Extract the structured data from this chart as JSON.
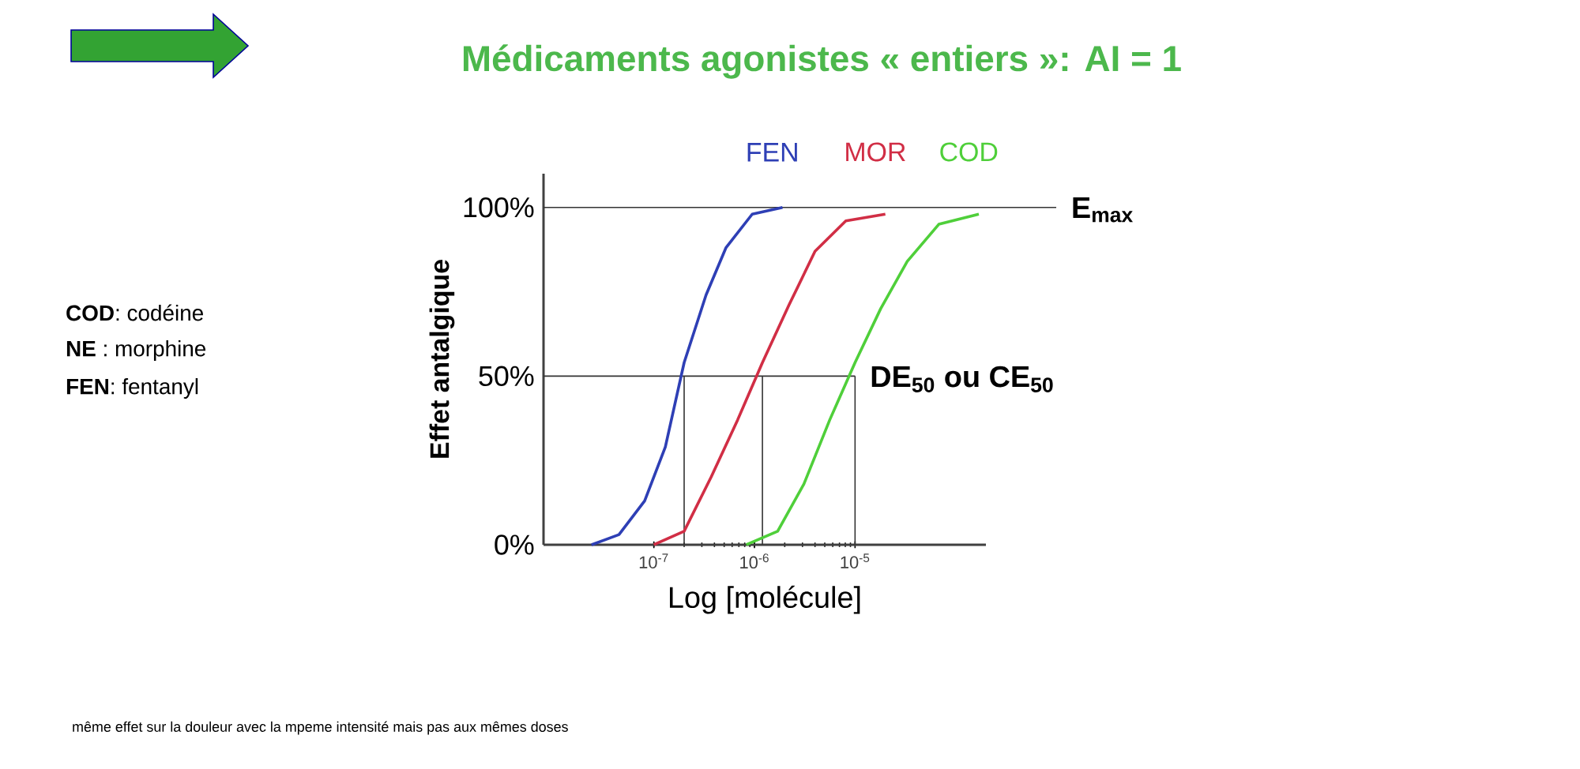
{
  "chart_data": {
    "type": "line",
    "title": "Médicaments agonistes « entiers »: AI = 1",
    "xlabel": "Log [molécule]",
    "ylabel": "Effet antalgique",
    "xlim": [
      8e-09,
      0.0002
    ],
    "ylim": [
      0,
      110
    ],
    "log": "x",
    "xticks": [
      {
        "value": 1e-07,
        "label": "10$^{-7}$"
      },
      {
        "value": 1e-06,
        "label": "10$^{-6}$"
      },
      {
        "value": 1e-05,
        "label": "10$^{-5}$"
      }
    ],
    "yticks": [
      {
        "value": 0,
        "label": "0%"
      },
      {
        "value": 50,
        "label": "50%"
      },
      {
        "value": 100,
        "label": "100%"
      }
    ],
    "series": [
      {
        "name": "FEN",
        "color": "#2e3fb5",
        "x": [
          2.4e-08,
          4.5e-08,
          8.1e-08,
          1.3e-07,
          2e-07,
          3.3e-07,
          5.2e-07,
          9.5e-07,
          1.9e-06
        ],
        "values": [
          0,
          3,
          13,
          29,
          54,
          74,
          88,
          98,
          100
        ]
      },
      {
        "name": "MOR",
        "color": "#d12e45",
        "x": [
          1e-07,
          2e-07,
          3.7e-07,
          6.8e-07,
          1.2e-06,
          2.2e-06,
          4e-06,
          8.1e-06,
          2e-05
        ],
        "values": [
          0,
          4,
          20,
          37,
          54,
          71,
          87,
          96,
          98
        ]
      },
      {
        "name": "COD",
        "color": "#4fcf3a",
        "x": [
          8.3e-07,
          1.7e-06,
          3.1e-06,
          5.6e-06,
          1e-05,
          1.8e-05,
          3.3e-05,
          6.8e-05,
          0.00017
        ],
        "values": [
          0,
          4,
          18,
          37,
          54,
          70,
          84,
          95,
          98
        ]
      }
    ],
    "ref_lines": [
      {
        "axis": "y",
        "value": 100,
        "label": "E$_{max}$"
      },
      {
        "axis": "y",
        "value": 50,
        "label": "DE$_{50}$ ou CE$_{50}$"
      },
      {
        "axis": "x",
        "value": 2e-07
      },
      {
        "axis": "x",
        "value": 1.2e-06
      },
      {
        "axis": "x",
        "value": 1e-05
      }
    ],
    "annotations": [
      "**COD**: codéine",
      "**NE** : morphine",
      "**FEN**: fentanyl",
      "même effet sur la douleur avec la mpeme intensité mais pas aux mêmes doses"
    ],
    "grid": false,
    "marker": "none",
    "line_style": "solid"
  }
}
